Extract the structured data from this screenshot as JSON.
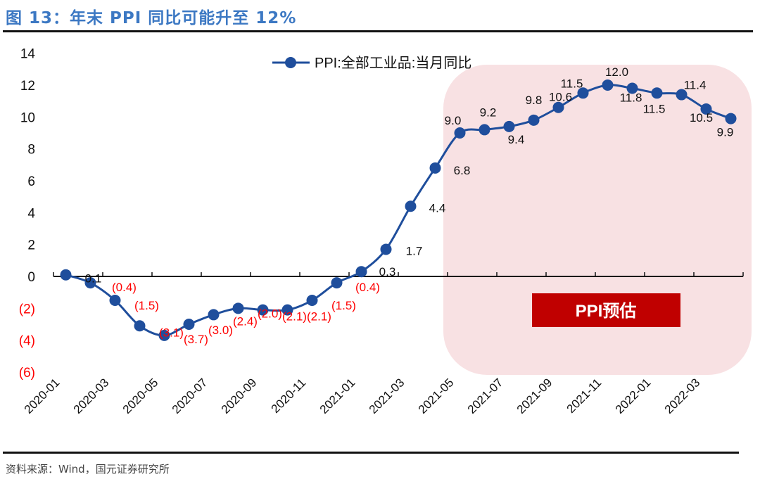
{
  "title": "图 13：年末 PPI 同比可能升至 12%",
  "source": "资料来源：Wind，国元证券研究所",
  "colors": {
    "title": "#3c78c3",
    "series": "#1f4e9c",
    "marker": "#1f4e9c",
    "negative_label": "#ff0000",
    "positive_label": "#111111",
    "highlight_fill": "#f8e1e3",
    "badge_fill": "#c00000"
  },
  "chart_data": {
    "type": "line",
    "title": "图 13：年末 PPI 同比可能升至 12%",
    "xlabel": "",
    "ylabel": "",
    "ylim": [
      -6,
      14
    ],
    "yticks": [
      14,
      12,
      10,
      8,
      6,
      4,
      2,
      0,
      -2,
      -4,
      -6
    ],
    "ytick_labels": [
      "14",
      "12",
      "10",
      "8",
      "6",
      "4",
      "2",
      "0",
      "(2)",
      "(4)",
      "(6)"
    ],
    "grid": false,
    "legend_position": "top-center",
    "x": [
      "2020-01",
      "2020-02",
      "2020-03",
      "2020-04",
      "2020-05",
      "2020-06",
      "2020-07",
      "2020-08",
      "2020-09",
      "2020-10",
      "2020-11",
      "2020-12",
      "2021-01",
      "2021-02",
      "2021-03",
      "2021-04",
      "2021-05",
      "2021-06",
      "2021-07",
      "2021-08",
      "2021-09",
      "2021-10",
      "2021-11",
      "2021-12",
      "2022-01",
      "2022-02",
      "2022-03",
      "2022-04"
    ],
    "xtick_labels": [
      "2020-01",
      "2020-03",
      "2020-05",
      "2020-07",
      "2020-09",
      "2020-11",
      "2021-01",
      "2021-03",
      "2021-05",
      "2021-07",
      "2021-09",
      "2021-11",
      "2022-01",
      "2022-03"
    ],
    "series": [
      {
        "name": "PPI:全部工业品:当月同比",
        "values": [
          0.1,
          -0.4,
          -1.5,
          -3.1,
          -3.7,
          -3.0,
          -2.4,
          -2.0,
          -2.1,
          -2.1,
          -1.5,
          -0.4,
          0.3,
          1.7,
          4.4,
          6.8,
          9.0,
          9.2,
          9.4,
          9.8,
          10.6,
          11.5,
          12.0,
          11.8,
          11.5,
          11.4,
          10.5,
          9.9
        ],
        "labels": [
          "0.1",
          "(0.4)",
          "(1.5)",
          "(3.1)",
          "(3.7)",
          "(3.0)",
          "(2.4)",
          "(2.0)",
          "(2.1)",
          "(2.1)",
          "(1.5)",
          "(0.4)",
          "0.3",
          "1.7",
          "4.4",
          "6.8",
          "9.0",
          "9.2",
          "9.4",
          "9.8",
          "10.6",
          "11.5",
          "12.0",
          "11.8",
          "11.5",
          "11.4",
          "10.5",
          "9.9"
        ]
      }
    ],
    "annotations": [
      {
        "text": "PPI预估",
        "range": [
          "2021-05",
          "2022-04"
        ],
        "note": "forecast region highlighted"
      }
    ]
  }
}
